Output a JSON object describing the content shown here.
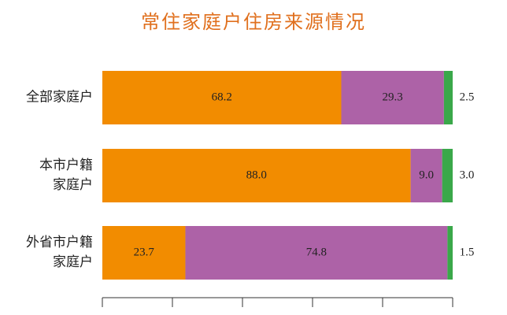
{
  "chart_data": {
    "type": "stacked-bar-horizontal",
    "title": "常住家庭户住房来源情况",
    "categories": [
      "全部家庭户",
      "本市户籍\n家庭户",
      "外省市户籍\n家庭户"
    ],
    "series": [
      {
        "color": "#f28c00",
        "values": [
          68.2,
          88.0,
          23.7
        ],
        "value_labels": [
          "68.2",
          "88.0",
          "23.7"
        ]
      },
      {
        "color": "#ad62a7",
        "values": [
          29.3,
          9.0,
          74.8
        ],
        "value_labels": [
          "29.3",
          "9.0",
          "74.8"
        ]
      },
      {
        "color": "#3aa84a",
        "values": [
          2.5,
          3.0,
          1.5
        ],
        "value_labels": [
          "2.5",
          "3.0",
          "1.5"
        ]
      }
    ],
    "xlim": [
      0,
      100
    ],
    "xticks": [
      0,
      20,
      40,
      60,
      80,
      100
    ]
  }
}
